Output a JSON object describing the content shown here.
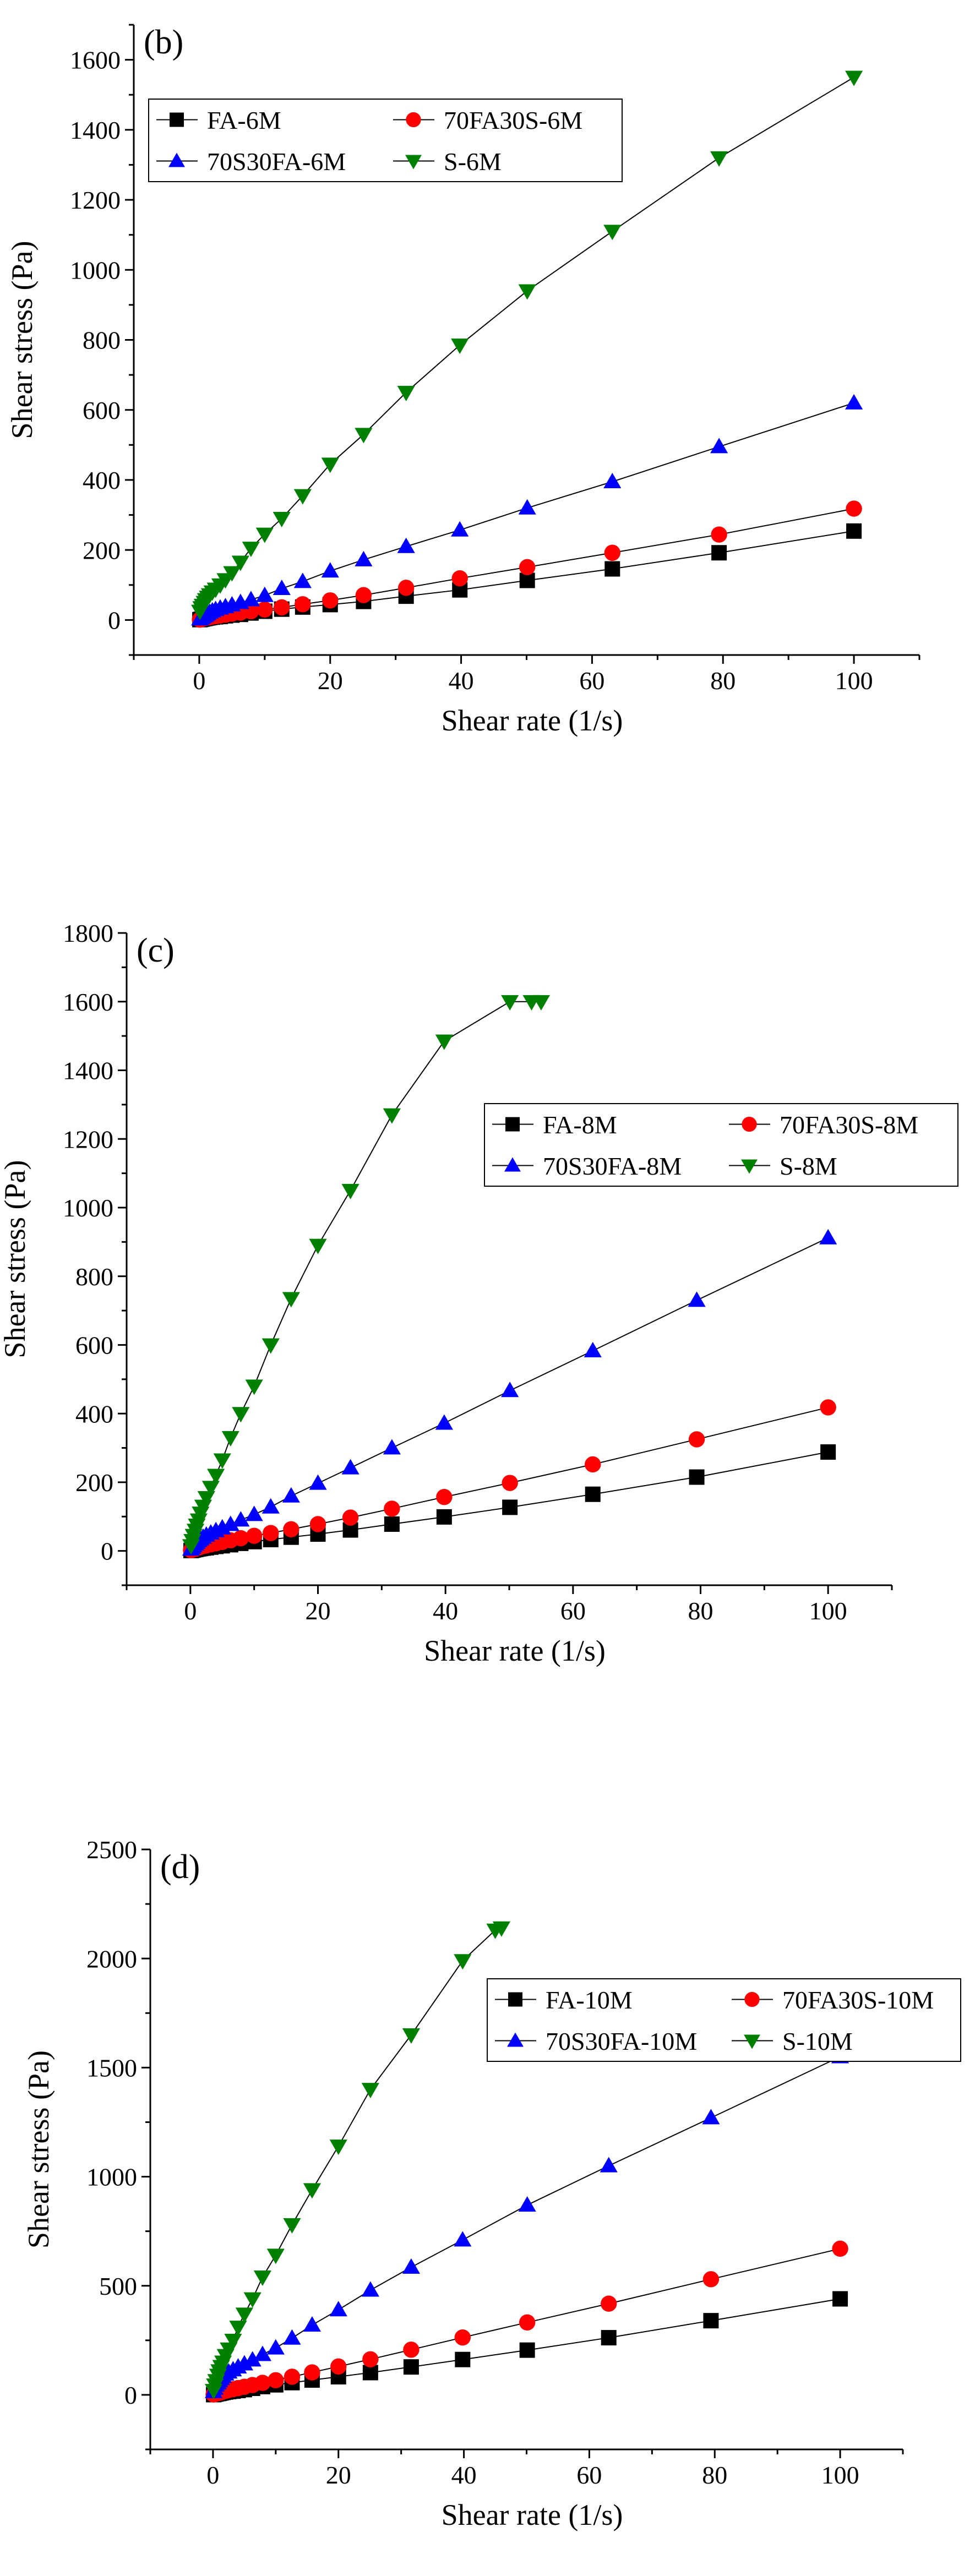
{
  "chart_data": [
    {
      "type": "line",
      "panel_label": "(b)",
      "xlabel": "Shear rate (1/s)",
      "ylabel": "Shear stress (Pa)",
      "xlim": [
        -10,
        110
      ],
      "ylim": [
        -100,
        1700
      ],
      "xticks": [
        0,
        20,
        40,
        60,
        80,
        100
      ],
      "yticks": [
        0,
        200,
        400,
        600,
        800,
        1000,
        1200,
        1400,
        1600
      ],
      "legend_position": "top-left",
      "series": [
        {
          "name": "FA-6M",
          "marker": "square",
          "color": "#000000",
          "x": [
            0.1,
            0.3,
            0.5,
            0.8,
            1.0,
            1.3,
            1.6,
            2.0,
            2.5,
            3.2,
            4.0,
            5.0,
            6.3,
            7.9,
            10,
            12.6,
            15.8,
            20,
            25.1,
            31.6,
            39.8,
            50.1,
            63.1,
            79.4,
            100
          ],
          "y": [
            1,
            2,
            3,
            4,
            5,
            6,
            7,
            8,
            9,
            10,
            12,
            14,
            16,
            20,
            25,
            31,
            37,
            44,
            53,
            68,
            86,
            113,
            146,
            192,
            254
          ]
        },
        {
          "name": "70FA30S-6M",
          "marker": "circle",
          "color": "#ff0000",
          "x": [
            0.1,
            0.3,
            0.5,
            0.8,
            1.0,
            1.3,
            1.6,
            2.0,
            2.5,
            3.2,
            4.0,
            5.0,
            6.3,
            7.9,
            10,
            12.6,
            15.8,
            20,
            25.1,
            31.6,
            39.8,
            50.1,
            63.1,
            79.4,
            100
          ],
          "y": [
            1,
            2,
            4,
            5,
            6,
            7,
            8,
            10,
            11,
            13,
            15,
            18,
            21,
            25,
            30,
            36,
            45,
            56,
            71,
            92,
            119,
            151,
            192,
            244,
            318
          ]
        },
        {
          "name": "70S30FA-6M",
          "marker": "triangle-up",
          "color": "#0000ff",
          "x": [
            0.1,
            0.3,
            0.5,
            0.8,
            1.0,
            1.3,
            1.6,
            2.0,
            2.5,
            3.2,
            4.0,
            5.0,
            6.3,
            7.9,
            10,
            12.6,
            15.8,
            20,
            25.1,
            31.6,
            39.8,
            50.1,
            63.1,
            79.4,
            100
          ],
          "y": [
            3,
            6,
            9,
            12,
            15,
            18,
            22,
            26,
            30,
            34,
            38,
            43,
            50,
            58,
            70,
            90,
            110,
            140,
            172,
            210,
            257,
            320,
            395,
            495,
            620
          ]
        },
        {
          "name": "S-6M",
          "marker": "triangle-down",
          "color": "#008000",
          "x": [
            0.1,
            0.3,
            0.5,
            0.8,
            1.0,
            1.3,
            1.6,
            2.0,
            2.5,
            3.2,
            4.0,
            5.0,
            6.3,
            7.9,
            10,
            12.6,
            15.8,
            20,
            25.1,
            31.6,
            39.8,
            50.1,
            63.1,
            79.4,
            100
          ],
          "y": [
            25,
            35,
            42,
            50,
            58,
            65,
            72,
            80,
            88,
            100,
            115,
            135,
            165,
            205,
            245,
            290,
            355,
            445,
            530,
            650,
            785,
            940,
            1110,
            1320,
            1550
          ]
        }
      ]
    },
    {
      "type": "line",
      "panel_label": "(c)",
      "xlabel": "Shear rate (1/s)",
      "ylabel": "Shear stress (Pa)",
      "xlim": [
        -10,
        110
      ],
      "ylim": [
        -100,
        1800
      ],
      "xticks": [
        0,
        20,
        40,
        60,
        80,
        100
      ],
      "yticks": [
        0,
        200,
        400,
        600,
        800,
        1000,
        1200,
        1400,
        1600,
        1800
      ],
      "legend_position": "top-right",
      "series": [
        {
          "name": "FA-8M",
          "marker": "square",
          "color": "#000000",
          "x": [
            0.1,
            0.3,
            0.5,
            0.8,
            1.0,
            1.3,
            1.6,
            2.0,
            2.5,
            3.2,
            4.0,
            5.0,
            6.3,
            7.9,
            10,
            12.6,
            15.8,
            20,
            25.1,
            31.6,
            39.8,
            50.1,
            63.1,
            79.4,
            100
          ],
          "y": [
            1,
            2,
            3,
            4,
            5,
            6,
            7,
            8,
            9,
            11,
            13,
            15,
            18,
            22,
            27,
            33,
            40,
            49,
            61,
            78,
            99,
            127,
            165,
            215,
            288
          ]
        },
        {
          "name": "70FA30S-8M",
          "marker": "circle",
          "color": "#ff0000",
          "x": [
            0.1,
            0.3,
            0.5,
            0.8,
            1.0,
            1.3,
            1.6,
            2.0,
            2.5,
            3.2,
            4.0,
            5.0,
            6.3,
            7.9,
            10,
            12.6,
            15.8,
            20,
            25.1,
            31.6,
            39.8,
            50.1,
            63.1,
            79.4,
            100
          ],
          "y": [
            2,
            3,
            5,
            6,
            8,
            10,
            12,
            14,
            16,
            19,
            22,
            26,
            31,
            37,
            44,
            52,
            63,
            78,
            97,
            123,
            157,
            198,
            252,
            325,
            418
          ]
        },
        {
          "name": "70S30FA-8M",
          "marker": "triangle-up",
          "color": "#0000ff",
          "x": [
            0.1,
            0.3,
            0.5,
            0.8,
            1.0,
            1.3,
            1.6,
            2.0,
            2.5,
            3.2,
            4.0,
            5.0,
            6.3,
            7.9,
            10,
            12.6,
            15.8,
            20,
            25.1,
            31.6,
            39.8,
            50.1,
            63.1,
            79.4,
            100
          ],
          "y": [
            5,
            10,
            15,
            20,
            25,
            30,
            35,
            40,
            46,
            52,
            59,
            67,
            77,
            90,
            106,
            128,
            160,
            197,
            242,
            300,
            372,
            467,
            583,
            730,
            912
          ]
        },
        {
          "name": "S-8M",
          "marker": "triangle-down",
          "color": "#008000",
          "x": [
            0.1,
            0.3,
            0.5,
            0.8,
            1.0,
            1.3,
            1.6,
            2.0,
            2.5,
            3.2,
            4.0,
            5.0,
            6.3,
            7.9,
            10,
            12.6,
            15.8,
            20,
            25.1,
            31.6,
            39.8,
            50.1,
            53.5,
            55
          ],
          "y": [
            15,
            30,
            45,
            60,
            75,
            90,
            110,
            130,
            155,
            185,
            220,
            265,
            330,
            400,
            480,
            600,
            735,
            890,
            1050,
            1270,
            1485,
            1600,
            1600,
            1600
          ]
        }
      ]
    },
    {
      "type": "line",
      "panel_label": "(d)",
      "xlabel": "Shear rate (1/s)",
      "ylabel": "Shear stress (Pa)",
      "xlim": [
        -10,
        110
      ],
      "ylim": [
        -250,
        2500
      ],
      "xticks": [
        0,
        20,
        40,
        60,
        80,
        100
      ],
      "yticks": [
        0,
        500,
        1000,
        1500,
        2000,
        2500
      ],
      "legend_position": "top-right",
      "series": [
        {
          "name": "FA-10M",
          "marker": "square",
          "color": "#000000",
          "x": [
            0.1,
            0.3,
            0.5,
            0.8,
            1.0,
            1.3,
            1.6,
            2.0,
            2.5,
            3.2,
            4.0,
            5.0,
            6.3,
            7.9,
            10,
            12.6,
            15.8,
            20,
            25.1,
            31.6,
            39.8,
            50.1,
            63.1,
            79.4,
            100
          ],
          "y": [
            1,
            3,
            4,
            6,
            7,
            9,
            11,
            13,
            15,
            17,
            20,
            24,
            30,
            38,
            46,
            56,
            68,
            83,
            102,
            128,
            162,
            205,
            262,
            340,
            440
          ]
        },
        {
          "name": "70FA30S-10M",
          "marker": "circle",
          "color": "#ff0000",
          "x": [
            0.1,
            0.3,
            0.5,
            0.8,
            1.0,
            1.3,
            1.6,
            2.0,
            2.5,
            3.2,
            4.0,
            5.0,
            6.3,
            7.9,
            10,
            12.6,
            15.8,
            20,
            25.1,
            31.6,
            39.8,
            50.1,
            63.1,
            79.4,
            100
          ],
          "y": [
            2,
            4,
            6,
            8,
            10,
            12,
            15,
            18,
            22,
            26,
            31,
            37,
            45,
            55,
            67,
            83,
            103,
            130,
            163,
            207,
            263,
            332,
            418,
            530,
            670
          ]
        },
        {
          "name": "70S30FA-10M",
          "marker": "triangle-up",
          "color": "#0000ff",
          "x": [
            0.1,
            0.3,
            0.5,
            0.8,
            1.0,
            1.3,
            1.6,
            2.0,
            2.5,
            3.2,
            4.0,
            5.0,
            6.3,
            7.9,
            10,
            12.6,
            15.8,
            20,
            25.1,
            31.6,
            39.8,
            50.1,
            63.1,
            79.4,
            100
          ],
          "y": [
            15,
            30,
            45,
            55,
            65,
            75,
            85,
            95,
            105,
            115,
            128,
            142,
            160,
            185,
            215,
            260,
            320,
            390,
            480,
            585,
            710,
            870,
            1050,
            1270,
            1550
          ]
        },
        {
          "name": "S-10M",
          "marker": "triangle-down",
          "color": "#008000",
          "x": [
            0.1,
            0.3,
            0.5,
            0.8,
            1.0,
            1.3,
            1.6,
            2.0,
            2.5,
            3.2,
            4.0,
            5.0,
            6.3,
            7.9,
            10,
            12.6,
            15.8,
            20,
            25.1,
            31.6,
            39.8,
            45,
            46
          ],
          "y": [
            20,
            45,
            65,
            90,
            110,
            130,
            150,
            180,
            210,
            250,
            310,
            370,
            440,
            540,
            640,
            780,
            940,
            1140,
            1400,
            1650,
            1990,
            2130,
            2140
          ]
        }
      ]
    }
  ]
}
